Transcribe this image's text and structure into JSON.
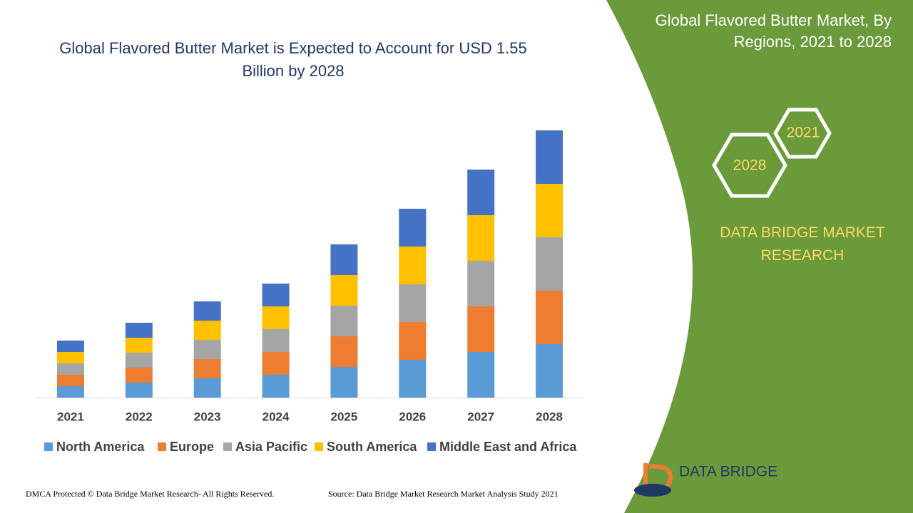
{
  "chart_data": {
    "type": "bar",
    "stacked": true,
    "title": "Global Flavored Butter Market is Expected to Account for USD 1.55  Billion by 2028",
    "categories": [
      "2021",
      "2022",
      "2023",
      "2024",
      "2025",
      "2026",
      "2027",
      "2028"
    ],
    "series": [
      {
        "name": "North America",
        "color": "#5b9bd5",
        "values": [
          16,
          21,
          27,
          32,
          43,
          53,
          64,
          75
        ]
      },
      {
        "name": "Europe",
        "color": "#ed7d31",
        "values": [
          16,
          21,
          27,
          32,
          43,
          53,
          64,
          75
        ]
      },
      {
        "name": "Asia Pacific",
        "color": "#a5a5a5",
        "values": [
          16,
          21,
          27,
          32,
          43,
          53,
          64,
          75
        ]
      },
      {
        "name": "South America",
        "color": "#ffc000",
        "values": [
          16,
          21,
          27,
          32,
          43,
          53,
          64,
          75
        ]
      },
      {
        "name": "Middle East and Africa",
        "color": "#4472c4",
        "values": [
          16,
          21,
          27,
          32,
          43,
          53,
          64,
          75
        ]
      }
    ],
    "legend": "bottom",
    "grid": false
  },
  "panel": {
    "title": "Global Flavored Butter Market, By Regions, 2021 to 2028",
    "hex_labels": [
      "2021",
      "2028"
    ],
    "brand": "DATA BRIDGE MARKET RESEARCH"
  },
  "footer": {
    "copyright": "DMCA Protected © Data Bridge Market Research- All Rights Reserved.",
    "source": "Source: Data Bridge Market Research Market Analysis Study 2021",
    "logo": "DATA BRIDGE"
  }
}
